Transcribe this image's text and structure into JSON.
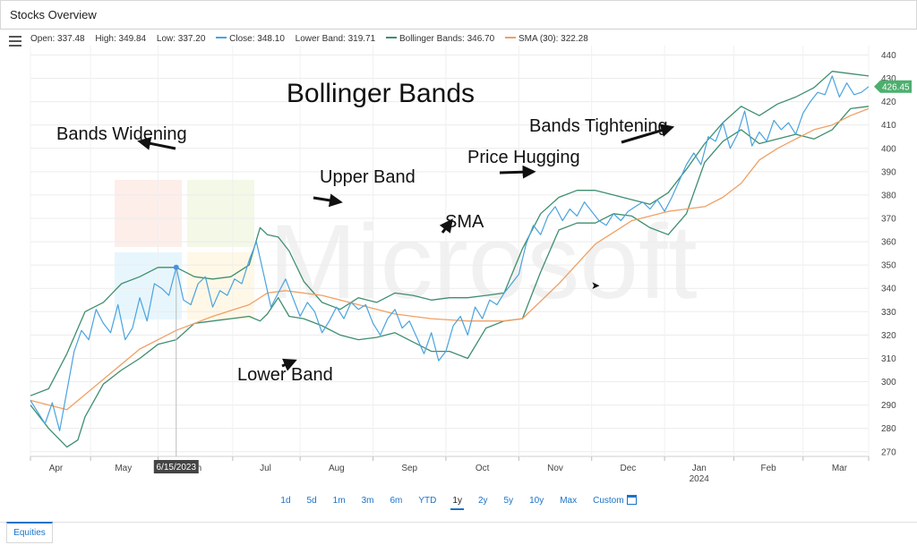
{
  "window": {
    "title": "Stocks Overview"
  },
  "info": {
    "open": "Open: 337.48",
    "high": "High: 349.84",
    "low": "Low: 337.20",
    "close": "Close: 348.10",
    "lower_band": "Lower Band: 319.71",
    "bollinger": "Bollinger Bands: 346.70",
    "sma": "SMA (30): 322.28"
  },
  "colors": {
    "close": "#4aa3df",
    "bands": "#3e8e6e",
    "sma": "#f0a064",
    "price_tag": "#4caf6e",
    "hover_dot": "#4a90e2",
    "accent": "#1a73c8"
  },
  "chart_data": {
    "type": "line",
    "title": "Bollinger Bands",
    "x_axis": {
      "tick_labels": [
        "Apr",
        "May",
        "Jun",
        "Jul",
        "Aug",
        "Sep",
        "Oct",
        "Nov",
        "Dec",
        "Jan",
        "Feb",
        "Mar"
      ],
      "secondary_label": "2024",
      "hover_label": "6/15/2023"
    },
    "y_axis": {
      "position": "right",
      "ticks": [
        270,
        280,
        290,
        300,
        310,
        320,
        330,
        340,
        350,
        360,
        370,
        380,
        390,
        400,
        410,
        420,
        430,
        440
      ],
      "ylim": [
        268,
        444
      ],
      "last_price_label": "426.45",
      "last_price": 426.45
    },
    "grid": true,
    "series": [
      {
        "name": "Close",
        "values": [
          [
            0,
            292
          ],
          [
            4,
            287
          ],
          [
            8,
            282
          ],
          [
            12,
            291
          ],
          [
            16,
            279
          ],
          [
            20,
            296
          ],
          [
            24,
            313
          ],
          [
            28,
            322
          ],
          [
            32,
            318
          ],
          [
            36,
            331
          ],
          [
            40,
            325
          ],
          [
            44,
            321
          ],
          [
            48,
            333
          ],
          [
            52,
            318
          ],
          [
            56,
            323
          ],
          [
            60,
            336
          ],
          [
            64,
            326
          ],
          [
            68,
            342
          ],
          [
            72,
            340
          ],
          [
            76,
            337
          ],
          [
            80,
            349
          ],
          [
            84,
            335
          ],
          [
            88,
            333
          ],
          [
            92,
            342
          ],
          [
            96,
            345
          ],
          [
            100,
            332
          ],
          [
            104,
            339
          ],
          [
            108,
            337
          ],
          [
            112,
            344
          ],
          [
            116,
            342
          ],
          [
            120,
            352
          ],
          [
            124,
            360
          ],
          [
            128,
            346
          ],
          [
            132,
            332
          ],
          [
            136,
            338
          ],
          [
            140,
            344
          ],
          [
            144,
            336
          ],
          [
            148,
            328
          ],
          [
            152,
            334
          ],
          [
            156,
            330
          ],
          [
            160,
            321
          ],
          [
            164,
            326
          ],
          [
            168,
            332
          ],
          [
            172,
            327
          ],
          [
            176,
            334
          ],
          [
            180,
            331
          ],
          [
            184,
            333
          ],
          [
            188,
            325
          ],
          [
            192,
            320
          ],
          [
            196,
            327
          ],
          [
            200,
            331
          ],
          [
            204,
            323
          ],
          [
            208,
            326
          ],
          [
            212,
            319
          ],
          [
            216,
            312
          ],
          [
            220,
            321
          ],
          [
            224,
            309
          ],
          [
            228,
            313
          ],
          [
            232,
            324
          ],
          [
            236,
            328
          ],
          [
            240,
            320
          ],
          [
            244,
            332
          ],
          [
            248,
            327
          ],
          [
            252,
            335
          ],
          [
            256,
            333
          ],
          [
            260,
            338
          ],
          [
            264,
            342
          ],
          [
            268,
            346
          ],
          [
            272,
            359
          ],
          [
            276,
            367
          ],
          [
            280,
            363
          ],
          [
            284,
            371
          ],
          [
            288,
            375
          ],
          [
            292,
            369
          ],
          [
            296,
            374
          ],
          [
            300,
            371
          ],
          [
            304,
            377
          ],
          [
            308,
            373
          ],
          [
            312,
            369
          ],
          [
            316,
            367
          ],
          [
            320,
            372
          ],
          [
            324,
            369
          ],
          [
            328,
            373
          ],
          [
            332,
            375
          ],
          [
            336,
            377
          ],
          [
            340,
            374
          ],
          [
            344,
            378
          ],
          [
            348,
            373
          ],
          [
            352,
            379
          ],
          [
            356,
            386
          ],
          [
            360,
            393
          ],
          [
            364,
            398
          ],
          [
            368,
            393
          ],
          [
            372,
            405
          ],
          [
            376,
            403
          ],
          [
            380,
            411
          ],
          [
            384,
            400
          ],
          [
            388,
            406
          ],
          [
            392,
            416
          ],
          [
            396,
            401
          ],
          [
            400,
            407
          ],
          [
            404,
            403
          ],
          [
            408,
            412
          ],
          [
            412,
            408
          ],
          [
            416,
            411
          ],
          [
            420,
            406
          ],
          [
            424,
            415
          ],
          [
            428,
            420
          ],
          [
            432,
            424
          ],
          [
            436,
            423
          ],
          [
            440,
            431
          ],
          [
            444,
            422
          ],
          [
            448,
            428
          ],
          [
            452,
            423
          ],
          [
            456,
            424
          ],
          [
            460,
            426.45
          ]
        ]
      },
      {
        "name": "Upper Band",
        "values": [
          [
            0,
            294
          ],
          [
            10,
            297
          ],
          [
            20,
            312
          ],
          [
            30,
            330
          ],
          [
            40,
            334
          ],
          [
            50,
            342
          ],
          [
            60,
            345
          ],
          [
            70,
            349
          ],
          [
            80,
            349
          ],
          [
            90,
            345
          ],
          [
            100,
            344
          ],
          [
            110,
            345
          ],
          [
            120,
            350
          ],
          [
            126,
            366
          ],
          [
            130,
            363
          ],
          [
            136,
            362
          ],
          [
            142,
            356
          ],
          [
            150,
            343
          ],
          [
            160,
            334
          ],
          [
            170,
            331
          ],
          [
            180,
            336
          ],
          [
            190,
            334
          ],
          [
            200,
            338
          ],
          [
            210,
            337
          ],
          [
            220,
            335
          ],
          [
            230,
            336
          ],
          [
            240,
            336
          ],
          [
            250,
            337
          ],
          [
            260,
            338
          ],
          [
            270,
            357
          ],
          [
            280,
            372
          ],
          [
            290,
            379
          ],
          [
            300,
            382
          ],
          [
            310,
            382
          ],
          [
            320,
            380
          ],
          [
            330,
            378
          ],
          [
            340,
            376
          ],
          [
            350,
            381
          ],
          [
            360,
            391
          ],
          [
            370,
            402
          ],
          [
            380,
            411
          ],
          [
            390,
            418
          ],
          [
            400,
            414
          ],
          [
            410,
            419
          ],
          [
            420,
            422
          ],
          [
            430,
            426
          ],
          [
            440,
            433
          ],
          [
            450,
            432
          ],
          [
            460,
            431
          ]
        ]
      },
      {
        "name": "Lower Band",
        "values": [
          [
            0,
            290
          ],
          [
            10,
            280
          ],
          [
            20,
            272
          ],
          [
            26,
            275
          ],
          [
            30,
            285
          ],
          [
            40,
            299
          ],
          [
            50,
            305
          ],
          [
            60,
            310
          ],
          [
            70,
            316
          ],
          [
            80,
            318
          ],
          [
            90,
            325
          ],
          [
            100,
            326
          ],
          [
            110,
            327
          ],
          [
            120,
            328
          ],
          [
            126,
            326
          ],
          [
            130,
            329
          ],
          [
            136,
            336
          ],
          [
            142,
            328
          ],
          [
            150,
            327
          ],
          [
            160,
            324
          ],
          [
            170,
            320
          ],
          [
            180,
            318
          ],
          [
            190,
            319
          ],
          [
            200,
            321
          ],
          [
            210,
            317
          ],
          [
            220,
            313
          ],
          [
            230,
            313
          ],
          [
            240,
            310
          ],
          [
            250,
            323
          ],
          [
            260,
            326
          ],
          [
            270,
            327
          ],
          [
            280,
            347
          ],
          [
            290,
            365
          ],
          [
            300,
            368
          ],
          [
            310,
            368
          ],
          [
            320,
            372
          ],
          [
            330,
            371
          ],
          [
            340,
            366
          ],
          [
            350,
            363
          ],
          [
            360,
            372
          ],
          [
            370,
            394
          ],
          [
            380,
            403
          ],
          [
            390,
            408
          ],
          [
            400,
            402
          ],
          [
            410,
            404
          ],
          [
            420,
            406
          ],
          [
            430,
            404
          ],
          [
            440,
            408
          ],
          [
            450,
            417
          ],
          [
            460,
            418
          ]
        ]
      },
      {
        "name": "SMA (30)",
        "values": [
          [
            0,
            292
          ],
          [
            20,
            288
          ],
          [
            40,
            301
          ],
          [
            60,
            314
          ],
          [
            80,
            322
          ],
          [
            100,
            328
          ],
          [
            120,
            333
          ],
          [
            130,
            338
          ],
          [
            140,
            339
          ],
          [
            160,
            337
          ],
          [
            180,
            333
          ],
          [
            200,
            329
          ],
          [
            220,
            327
          ],
          [
            240,
            326
          ],
          [
            260,
            326
          ],
          [
            270,
            327
          ],
          [
            290,
            342
          ],
          [
            310,
            359
          ],
          [
            330,
            369
          ],
          [
            350,
            373
          ],
          [
            370,
            375
          ],
          [
            380,
            379
          ],
          [
            390,
            385
          ],
          [
            400,
            395
          ],
          [
            410,
            400
          ],
          [
            420,
            404
          ],
          [
            430,
            408
          ],
          [
            440,
            410
          ],
          [
            450,
            414
          ],
          [
            460,
            417
          ]
        ]
      }
    ],
    "annotations": [
      {
        "text": "Bands Widening",
        "x": 60,
        "y": 403
      },
      {
        "text": "Upper Band",
        "x": 170,
        "y": 377
      },
      {
        "text": "SMA",
        "x": 231,
        "y": 369
      },
      {
        "text": "Price Hugging",
        "x": 276,
        "y": 390
      },
      {
        "text": "Bands Tightening",
        "x": 352,
        "y": 409
      },
      {
        "text": "Lower Band",
        "x": 145,
        "y": 309
      }
    ]
  },
  "ranges": {
    "items": [
      "1d",
      "5d",
      "1m",
      "3m",
      "6m",
      "YTD",
      "1y",
      "2y",
      "5y",
      "10y",
      "Max",
      "Custom"
    ],
    "active": "1y"
  },
  "tabs": {
    "equities": "Equities"
  }
}
